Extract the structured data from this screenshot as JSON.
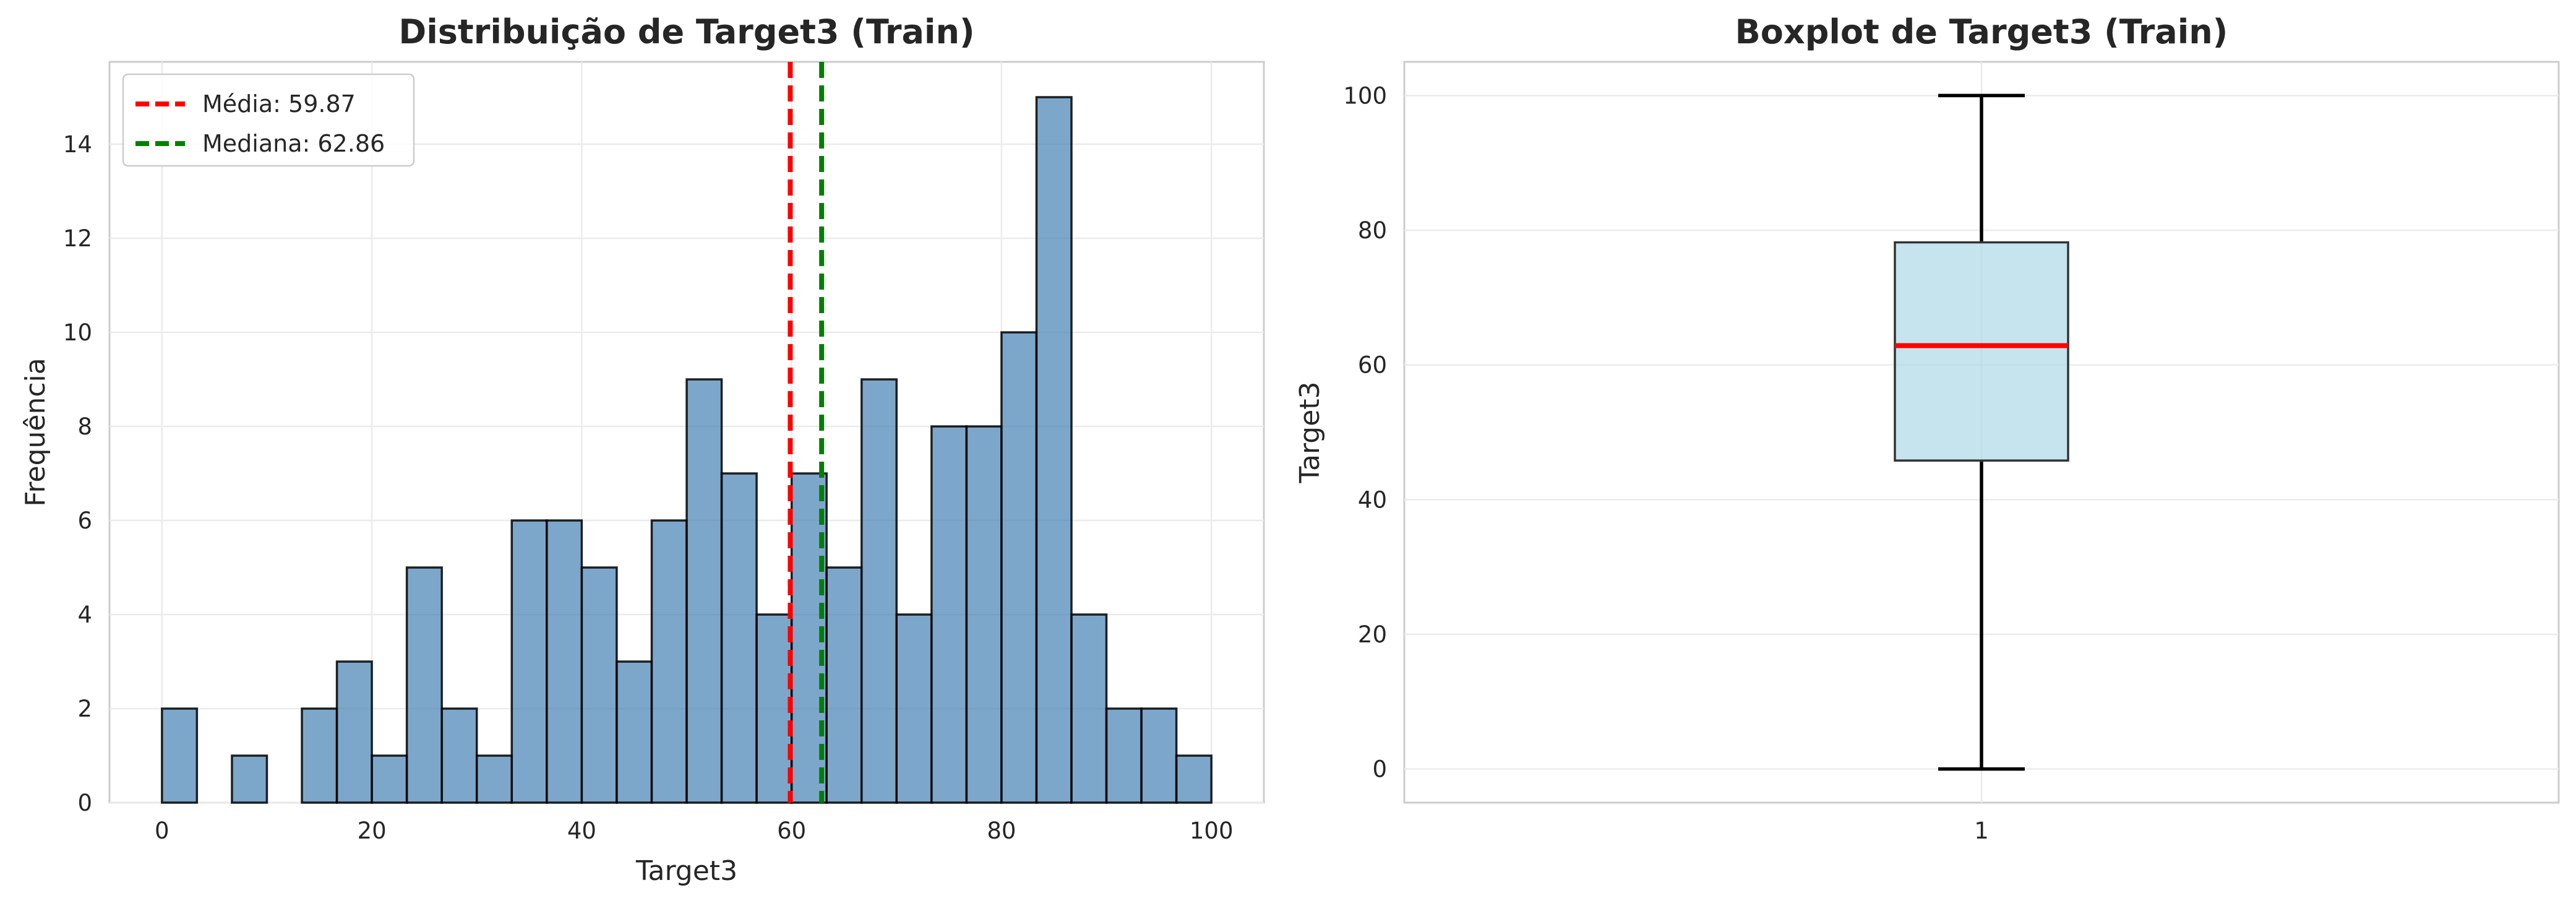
{
  "chart_data": [
    {
      "type": "bar",
      "title": "Distribuição de Target3 (Train)",
      "xlabel": "Target3",
      "ylabel": "Frequência",
      "xlim": [
        -5,
        105
      ],
      "ylim": [
        0,
        15.75
      ],
      "xticks": [
        0,
        20,
        40,
        60,
        80,
        100
      ],
      "yticks": [
        0,
        2,
        4,
        6,
        8,
        10,
        12,
        14
      ],
      "grid": true,
      "bin_edges": [
        0,
        3.333,
        6.667,
        10,
        13.333,
        16.667,
        20,
        23.333,
        26.667,
        30,
        33.333,
        36.667,
        40,
        43.333,
        46.667,
        50,
        53.333,
        56.667,
        60,
        63.333,
        66.667,
        70,
        73.333,
        76.667,
        80,
        83.333,
        86.667,
        90,
        93.333,
        96.667,
        100
      ],
      "values": [
        2,
        0,
        1,
        0,
        2,
        3,
        1,
        5,
        2,
        1,
        6,
        6,
        5,
        3,
        6,
        9,
        7,
        4,
        7,
        5,
        9,
        4,
        8,
        8,
        10,
        15,
        4,
        2,
        2,
        1
      ],
      "bar_color": "#4682b4",
      "lines": [
        {
          "label": "Média: 59.87",
          "x": 59.87,
          "color": "#ff0000"
        },
        {
          "label": "Mediana: 62.86",
          "x": 62.86,
          "color": "#008000"
        }
      ],
      "legend_position": "upper-left"
    },
    {
      "type": "boxplot",
      "title": "Boxplot de Target3 (Train)",
      "xlabel": "",
      "ylabel": "Target3",
      "ylim": [
        -5,
        105
      ],
      "yticks": [
        0,
        20,
        40,
        60,
        80,
        100
      ],
      "xticks": [
        "1"
      ],
      "grid": true,
      "box": {
        "whisker_low": 0,
        "q1": 45.8,
        "median": 62.86,
        "q3": 78.2,
        "whisker_high": 100
      },
      "box_color": "#add8e6",
      "median_color": "#ff0000"
    }
  ]
}
